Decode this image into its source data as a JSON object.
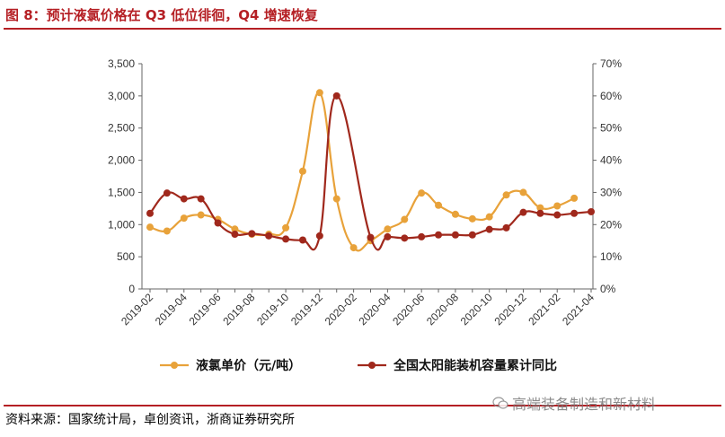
{
  "figure_title": "图 8：预计液氯价格在 Q3 低位徘徊，Q4 增速恢复",
  "source": "资料来源：国家统计局，卓创资讯，浙商证券研究所",
  "watermark": "高端装备制造和新材料",
  "chart_data": {
    "type": "line",
    "title": "",
    "xlabel": "",
    "ylabel": "",
    "x": [
      "2019-02",
      "2019-03",
      "2019-04",
      "2019-05",
      "2019-06",
      "2019-07",
      "2019-08",
      "2019-09",
      "2019-10",
      "2019-11",
      "2019-12",
      "2020-01",
      "2020-02",
      "2020-03",
      "2020-04",
      "2020-05",
      "2020-06",
      "2020-07",
      "2020-08",
      "2020-09",
      "2020-10",
      "2020-11",
      "2020-12",
      "2021-01",
      "2021-02",
      "2021-03",
      "2021-04"
    ],
    "xtick_labels": [
      "2019-02",
      "2019-04",
      "2019-06",
      "2019-08",
      "2019-10",
      "2019-12",
      "2020-02",
      "2020-04",
      "2020-06",
      "2020-08",
      "2020-10",
      "2020-12",
      "2021-02",
      "2021-04"
    ],
    "y_left": {
      "min": 0,
      "max": 3500,
      "ticks": [
        0,
        500,
        1000,
        1500,
        2000,
        2500,
        3000,
        3500
      ],
      "tick_labels": [
        "0",
        "500",
        "1,000",
        "1,500",
        "2,000",
        "2,500",
        "3,000",
        "3,500"
      ]
    },
    "y_right": {
      "min": 0,
      "max": 70,
      "ticks": [
        0,
        10,
        20,
        30,
        40,
        50,
        60,
        70
      ],
      "tick_labels": [
        "0%",
        "10%",
        "20%",
        "30%",
        "40%",
        "50%",
        "60%",
        "70%"
      ]
    },
    "series": [
      {
        "name": "液氯单价（元/吨）",
        "axis": "left",
        "color": "#e8a23a",
        "values": [
          960,
          900,
          1100,
          1150,
          1080,
          930,
          850,
          850,
          950,
          1830,
          3050,
          1400,
          640,
          750,
          930,
          1080,
          1490,
          1300,
          1160,
          1090,
          1120,
          1460,
          1500,
          1260,
          1290,
          1410,
          null
        ]
      },
      {
        "name": "全国太阳能装机容量累计同比",
        "axis": "right",
        "color": "#a0281c",
        "values": [
          23.5,
          29.8,
          28.0,
          28.0,
          20.5,
          17.0,
          17.2,
          16.5,
          15.5,
          15.2,
          16.5,
          60.0,
          null,
          16.0,
          16.2,
          15.8,
          16.2,
          16.8,
          16.8,
          16.8,
          18.5,
          19.0,
          23.8,
          23.5,
          23.0,
          23.5,
          24.0
        ]
      }
    ],
    "legend_position": "bottom"
  }
}
